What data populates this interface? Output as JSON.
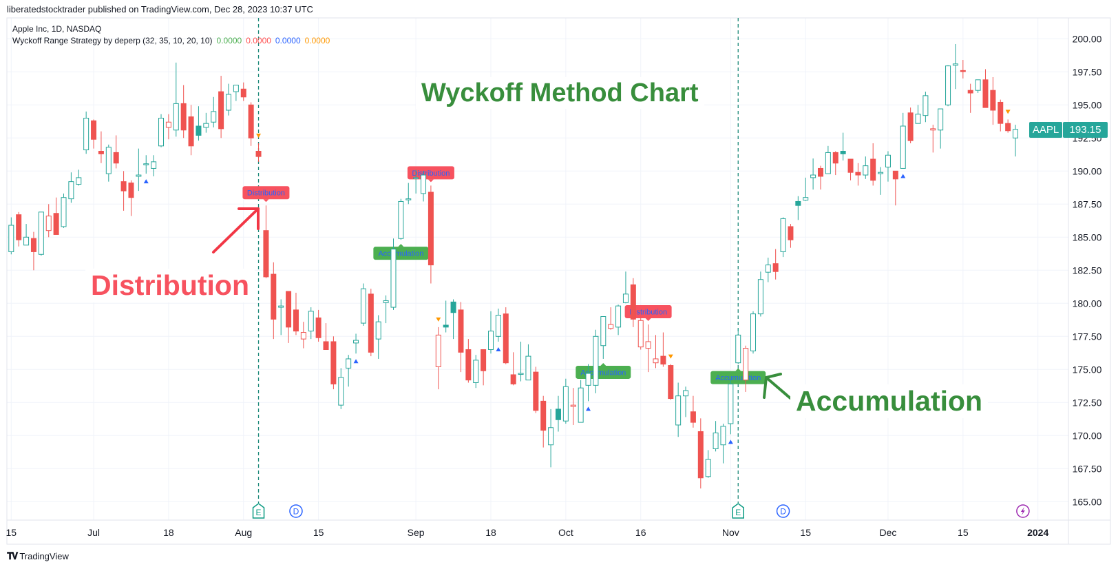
{
  "header": {
    "published": "liberatedstocktrader published on TradingView.com, Dec 28, 2023 10:37 UTC"
  },
  "legend": {
    "symbol_line": "Apple Inc, 1D, NASDAQ",
    "indicator": "Wyckoff Range Strategy by deperp (32, 35, 10, 20, 10)",
    "values": [
      {
        "text": "0.0000",
        "color": "#4caf50"
      },
      {
        "text": "0.0000",
        "color": "#ff5252"
      },
      {
        "text": "0.0000",
        "color": "#2962ff"
      },
      {
        "text": "0.0000",
        "color": "#ff9800"
      }
    ]
  },
  "annotations": {
    "title": "Wyckoff Method Chart",
    "distribution": "Distribution",
    "accumulation": "Accumulation",
    "title_color": "#388e3c",
    "distribution_color": "#f7525f",
    "accumulation_color": "#388e3c"
  },
  "price_badge": {
    "symbol": "AAPL",
    "value": "193.15",
    "color": "#26a69a"
  },
  "footer": {
    "logo_text": "TradingView"
  },
  "colors": {
    "up": "#26a69a",
    "down": "#ef5350",
    "grid": "#f0f3fa",
    "marker_up": "#2962ff",
    "marker_down": "#ff9800",
    "earnings_line": "#1e8a7a"
  },
  "chart_data": {
    "type": "candlestick",
    "style": "hollow candles",
    "symbol": "AAPL",
    "interval": "1D",
    "ylim": [
      164,
      201
    ],
    "grid": true,
    "y_ticks": [
      "200.00",
      "197.50",
      "195.00",
      "192.50",
      "190.00",
      "187.50",
      "185.00",
      "182.50",
      "180.00",
      "177.50",
      "175.00",
      "172.50",
      "170.00",
      "167.50",
      "165.00"
    ],
    "x_ticks": [
      {
        "label": "15",
        "date": "2023-06-15"
      },
      {
        "label": "Jul",
        "date": "2023-07-03"
      },
      {
        "label": "18",
        "date": "2023-07-18"
      },
      {
        "label": "Aug",
        "date": "2023-08-01"
      },
      {
        "label": "15",
        "date": "2023-08-15"
      },
      {
        "label": "Sep",
        "date": "2023-09-01"
      },
      {
        "label": "18",
        "date": "2023-09-18"
      },
      {
        "label": "Oct",
        "date": "2023-10-02"
      },
      {
        "label": "16",
        "date": "2023-10-16"
      },
      {
        "label": "Nov",
        "date": "2023-11-01"
      },
      {
        "label": "15",
        "date": "2023-11-15"
      },
      {
        "label": "Dec",
        "date": "2023-12-01"
      },
      {
        "label": "15",
        "date": "2023-12-15"
      },
      {
        "label": "2024",
        "date": "2024-01-02",
        "bold": true
      }
    ],
    "candle_fields": [
      "date",
      "open",
      "high",
      "low",
      "close"
    ],
    "candles": [
      [
        "2023-06-15",
        183.9,
        186.5,
        183.7,
        185.9
      ],
      [
        "2023-06-16",
        186.7,
        186.9,
        184.3,
        184.8
      ],
      [
        "2023-06-20",
        184.4,
        186.0,
        184.4,
        185.0
      ],
      [
        "2023-06-21",
        184.9,
        185.4,
        182.5,
        183.9
      ],
      [
        "2023-06-22",
        183.7,
        186.9,
        183.6,
        186.9
      ],
      [
        "2023-06-23",
        185.5,
        187.5,
        185.0,
        186.6
      ],
      [
        "2023-06-26",
        186.8,
        188.0,
        185.2,
        185.2
      ],
      [
        "2023-06-27",
        185.8,
        188.3,
        185.7,
        188.0
      ],
      [
        "2023-06-28",
        187.9,
        189.9,
        187.6,
        189.2
      ],
      [
        "2023-06-29",
        189.0,
        190.1,
        188.9,
        189.5
      ],
      [
        "2023-06-30",
        191.6,
        194.5,
        191.3,
        194.0
      ],
      [
        "2023-07-03",
        193.8,
        193.9,
        191.7,
        192.4
      ],
      [
        "2023-07-05",
        191.5,
        193.0,
        190.6,
        191.3
      ],
      [
        "2023-07-06",
        189.8,
        192.0,
        189.2,
        191.8
      ],
      [
        "2023-07-07",
        191.4,
        192.7,
        190.2,
        190.6
      ],
      [
        "2023-07-10",
        189.2,
        190.0,
        187.0,
        188.5
      ],
      [
        "2023-07-11",
        189.1,
        189.3,
        186.6,
        188.0
      ],
      [
        "2023-07-12",
        189.6,
        191.7,
        188.5,
        189.7
      ],
      [
        "2023-07-13",
        190.5,
        191.2,
        189.8,
        190.55
      ],
      [
        "2023-07-14",
        190.2,
        191.2,
        189.6,
        190.7
      ],
      [
        "2023-07-17",
        191.9,
        194.3,
        191.8,
        194.0
      ],
      [
        "2023-07-18",
        193.3,
        194.3,
        192.4,
        193.7
      ],
      [
        "2023-07-19",
        193.1,
        198.2,
        192.6,
        195.1
      ],
      [
        "2023-07-20",
        195.1,
        196.5,
        192.5,
        193.1
      ],
      [
        "2023-07-21",
        194.1,
        195.0,
        191.2,
        191.9
      ],
      [
        "2023-07-24",
        193.4,
        194.9,
        192.3,
        192.7
      ],
      [
        "2023-07-25",
        193.3,
        194.4,
        192.9,
        193.6
      ],
      [
        "2023-07-26",
        193.7,
        195.6,
        193.3,
        194.5
      ],
      [
        "2023-07-27",
        196.0,
        197.2,
        192.5,
        193.2
      ],
      [
        "2023-07-28",
        194.6,
        196.6,
        194.2,
        195.8
      ],
      [
        "2023-07-31",
        196.0,
        196.5,
        195.3,
        196.5
      ],
      [
        "2023-08-01",
        196.2,
        196.7,
        195.3,
        195.6
      ],
      [
        "2023-08-02",
        195.0,
        195.2,
        191.9,
        192.5
      ],
      [
        "2023-08-03",
        191.5,
        192.1,
        190.7,
        191.1
      ],
      [
        "2023-08-04",
        185.5,
        187.4,
        181.9,
        182.0
      ],
      [
        "2023-08-07",
        182.2,
        183.1,
        177.3,
        178.8
      ],
      [
        "2023-08-08",
        179.7,
        180.3,
        177.6,
        179.8
      ],
      [
        "2023-08-09",
        180.9,
        180.9,
        177.0,
        178.2
      ],
      [
        "2023-08-10",
        179.5,
        180.8,
        177.6,
        177.9
      ],
      [
        "2023-08-11",
        177.3,
        178.6,
        176.6,
        177.8
      ],
      [
        "2023-08-14",
        177.9,
        179.7,
        177.3,
        179.4
      ],
      [
        "2023-08-15",
        178.9,
        179.5,
        177.1,
        177.4
      ],
      [
        "2023-08-16",
        177.1,
        178.5,
        176.5,
        176.5
      ],
      [
        "2023-08-17",
        177.1,
        177.5,
        173.5,
        173.9
      ],
      [
        "2023-08-18",
        172.3,
        175.1,
        172.0,
        174.4
      ],
      [
        "2023-08-21",
        175.1,
        176.1,
        173.7,
        175.8
      ],
      [
        "2023-08-22",
        177.0,
        177.7,
        176.2,
        177.2
      ],
      [
        "2023-08-23",
        178.5,
        181.5,
        178.3,
        181.1
      ],
      [
        "2023-08-24",
        180.7,
        181.1,
        176.0,
        176.3
      ],
      [
        "2023-08-25",
        177.3,
        179.1,
        175.8,
        178.6
      ],
      [
        "2023-08-28",
        180.05,
        180.6,
        178.5,
        180.2
      ],
      [
        "2023-08-29",
        179.7,
        184.9,
        179.5,
        184.1
      ],
      [
        "2023-08-30",
        184.9,
        187.9,
        184.8,
        187.7
      ],
      [
        "2023-08-31",
        187.85,
        189.1,
        187.5,
        187.9
      ],
      [
        "2023-09-01",
        189.45,
        190.1,
        188.3,
        189.5
      ],
      [
        "2023-09-05",
        188.3,
        190.0,
        187.7,
        189.7
      ],
      [
        "2023-09-06",
        188.4,
        188.9,
        181.5,
        182.9
      ],
      [
        "2023-09-07",
        175.2,
        178.2,
        173.5,
        177.6
      ],
      [
        "2023-09-08",
        178.35,
        180.2,
        177.8,
        178.2
      ],
      [
        "2023-09-11",
        180.1,
        180.3,
        177.3,
        179.3
      ],
      [
        "2023-09-12",
        179.5,
        180.1,
        174.8,
        176.3
      ],
      [
        "2023-09-13",
        176.5,
        177.3,
        174.0,
        174.2
      ],
      [
        "2023-09-14",
        174.0,
        176.1,
        173.6,
        175.7
      ],
      [
        "2023-09-15",
        176.5,
        176.5,
        173.8,
        174.9
      ],
      [
        "2023-09-18",
        176.5,
        179.4,
        176.2,
        177.9
      ],
      [
        "2023-09-19",
        177.5,
        179.6,
        177.1,
        179.1
      ],
      [
        "2023-09-20",
        179.2,
        179.7,
        175.4,
        175.5
      ],
      [
        "2023-09-21",
        174.6,
        176.3,
        173.8,
        173.9
      ],
      [
        "2023-09-22",
        174.65,
        177.1,
        174.1,
        174.7
      ],
      [
        "2023-09-25",
        174.2,
        176.9,
        174.2,
        176.0
      ],
      [
        "2023-09-26",
        174.8,
        175.2,
        171.7,
        171.9
      ],
      [
        "2023-09-27",
        172.6,
        173.0,
        169.1,
        170.4
      ],
      [
        "2023-09-28",
        169.3,
        172.0,
        167.6,
        170.6
      ],
      [
        "2023-09-29",
        172.0,
        173.0,
        170.3,
        171.2
      ],
      [
        "2023-10-02",
        171.1,
        174.3,
        170.9,
        173.7
      ],
      [
        "2023-10-03",
        172.2,
        173.6,
        170.8,
        172.3
      ],
      [
        "2023-10-04",
        171.0,
        174.2,
        171.0,
        173.6
      ],
      [
        "2023-10-05",
        173.8,
        175.4,
        172.6,
        174.7
      ],
      [
        "2023-10-06",
        173.8,
        178.0,
        173.2,
        177.5
      ],
      [
        "2023-10-09",
        176.8,
        179.0,
        175.8,
        179.0
      ],
      [
        "2023-10-10",
        178.1,
        179.7,
        178.0,
        178.4
      ],
      [
        "2023-10-11",
        178.2,
        179.9,
        177.6,
        179.8
      ],
      [
        "2023-10-12",
        180.05,
        182.4,
        180.0,
        180.7
      ],
      [
        "2023-10-13",
        181.4,
        181.9,
        178.2,
        178.8
      ],
      [
        "2023-10-16",
        176.7,
        178.9,
        176.5,
        178.7
      ],
      [
        "2023-10-17",
        176.6,
        178.4,
        174.8,
        177.1
      ],
      [
        "2023-10-18",
        175.5,
        177.6,
        175.1,
        175.8
      ],
      [
        "2023-10-19",
        176.0,
        177.8,
        175.2,
        175.4
      ],
      [
        "2023-10-20",
        175.3,
        175.4,
        172.7,
        172.8
      ],
      [
        "2023-10-23",
        170.8,
        174.0,
        169.9,
        173.0
      ],
      [
        "2023-10-24",
        173.0,
        173.7,
        171.4,
        173.4
      ],
      [
        "2023-10-25",
        171.8,
        173.0,
        170.6,
        171.0
      ],
      [
        "2023-10-26",
        170.3,
        171.3,
        166.0,
        166.8
      ],
      [
        "2023-10-27",
        166.9,
        168.9,
        166.8,
        168.2
      ],
      [
        "2023-10-30",
        169.0,
        171.1,
        168.8,
        170.2
      ],
      [
        "2023-10-31",
        169.3,
        170.9,
        167.9,
        170.7
      ],
      [
        "2023-11-01",
        170.9,
        174.2,
        170.1,
        173.9
      ],
      [
        "2023-11-02",
        175.5,
        178.1,
        175.4,
        177.6
      ],
      [
        "2023-11-03",
        174.2,
        176.8,
        173.3,
        176.6
      ],
      [
        "2023-11-06",
        176.4,
        179.4,
        176.2,
        179.2
      ],
      [
        "2023-11-07",
        179.2,
        182.4,
        179.0,
        181.8
      ],
      [
        "2023-11-08",
        182.35,
        183.45,
        181.6,
        182.9
      ],
      [
        "2023-11-09",
        183.0,
        184.1,
        181.8,
        182.4
      ],
      [
        "2023-11-10",
        183.9,
        186.5,
        183.5,
        186.4
      ],
      [
        "2023-11-13",
        185.8,
        186.0,
        184.2,
        184.8
      ],
      [
        "2023-11-14",
        187.7,
        188.1,
        186.3,
        187.4
      ],
      [
        "2023-11-15",
        187.8,
        189.5,
        187.75,
        188.0
      ],
      [
        "2023-11-16",
        189.5,
        190.95,
        188.6,
        189.7
      ],
      [
        "2023-11-17",
        190.2,
        190.4,
        188.6,
        189.6
      ],
      [
        "2023-11-20",
        189.8,
        191.9,
        189.8,
        191.4
      ],
      [
        "2023-11-21",
        191.4,
        191.5,
        189.7,
        190.6
      ],
      [
        "2023-11-22",
        191.5,
        192.9,
        190.8,
        191.3
      ],
      [
        "2023-11-24",
        190.9,
        190.9,
        189.3,
        189.9
      ],
      [
        "2023-11-27",
        189.9,
        190.6,
        188.9,
        189.7
      ],
      [
        "2023-11-28",
        189.7,
        191.1,
        189.4,
        190.4
      ],
      [
        "2023-11-29",
        190.9,
        192.1,
        188.9,
        189.3
      ],
      [
        "2023-11-30",
        189.8,
        190.3,
        188.2,
        189.9
      ],
      [
        "2023-12-01",
        190.3,
        191.5,
        189.2,
        191.2
      ],
      [
        "2023-12-04",
        190.0,
        190.0,
        187.4,
        189.4
      ],
      [
        "2023-12-05",
        190.2,
        194.4,
        190.2,
        193.4
      ],
      [
        "2023-12-06",
        194.4,
        194.8,
        192.1,
        192.3
      ],
      [
        "2023-12-07",
        193.6,
        195.0,
        193.6,
        194.3
      ],
      [
        "2023-12-08",
        194.2,
        196.0,
        193.7,
        195.7
      ],
      [
        "2023-12-11",
        193.1,
        193.5,
        191.4,
        193.2
      ],
      [
        "2023-12-12",
        193.1,
        194.7,
        191.7,
        194.7
      ],
      [
        "2023-12-13",
        195.0,
        198.0,
        194.9,
        197.95
      ],
      [
        "2023-12-14",
        198.0,
        199.6,
        196.2,
        198.1
      ],
      [
        "2023-12-15",
        197.6,
        198.4,
        197.0,
        197.55
      ],
      [
        "2023-12-18",
        196.1,
        196.6,
        194.4,
        195.9
      ],
      [
        "2023-12-19",
        196.1,
        196.9,
        195.9,
        196.9
      ],
      [
        "2023-12-20",
        196.9,
        197.7,
        194.8,
        194.8
      ],
      [
        "2023-12-21",
        196.1,
        197.1,
        193.5,
        194.6
      ],
      [
        "2023-12-22",
        195.2,
        195.4,
        193.0,
        193.6
      ],
      [
        "2023-12-26",
        193.6,
        193.9,
        192.9,
        193.05
      ],
      [
        "2023-12-27",
        192.5,
        193.5,
        191.1,
        193.15
      ]
    ],
    "signal_markers": [
      {
        "date": "2023-07-13",
        "dir": "up"
      },
      {
        "date": "2023-08-22",
        "dir": "up"
      },
      {
        "date": "2023-09-19",
        "dir": "up"
      },
      {
        "date": "2023-10-05",
        "dir": "up"
      },
      {
        "date": "2023-11-01",
        "dir": "up"
      },
      {
        "date": "2023-12-05",
        "dir": "up"
      },
      {
        "date": "2023-08-03",
        "dir": "down"
      },
      {
        "date": "2023-09-07",
        "dir": "down"
      },
      {
        "date": "2023-10-20",
        "dir": "down"
      },
      {
        "date": "2023-12-26",
        "dir": "down"
      }
    ],
    "signal_labels": [
      {
        "date": "2023-08-04",
        "text": "Distribution",
        "kind": "distribution"
      },
      {
        "date": "2023-09-06",
        "text": "Distribution",
        "kind": "distribution"
      },
      {
        "date": "2023-10-17",
        "text": "Distribution",
        "kind": "distribution"
      },
      {
        "date": "2023-08-30",
        "text": "Accumulation",
        "kind": "accumulation"
      },
      {
        "date": "2023-10-09",
        "text": "Accumulation",
        "kind": "accumulation"
      },
      {
        "date": "2023-11-02",
        "text": "Accumulation",
        "kind": "accumulation"
      }
    ],
    "event_markers": [
      {
        "date": "2023-08-03",
        "type": "earnings",
        "text": "E",
        "dashed_line": true
      },
      {
        "date": "2023-08-10",
        "type": "dividend",
        "text": "D"
      },
      {
        "date": "2023-11-02",
        "type": "earnings",
        "text": "E",
        "dashed_line": true
      },
      {
        "date": "2023-11-10",
        "type": "dividend",
        "text": "D"
      },
      {
        "date": "2023-12-28",
        "type": "split-or-event",
        "icon": "lightning-icon"
      }
    ]
  }
}
